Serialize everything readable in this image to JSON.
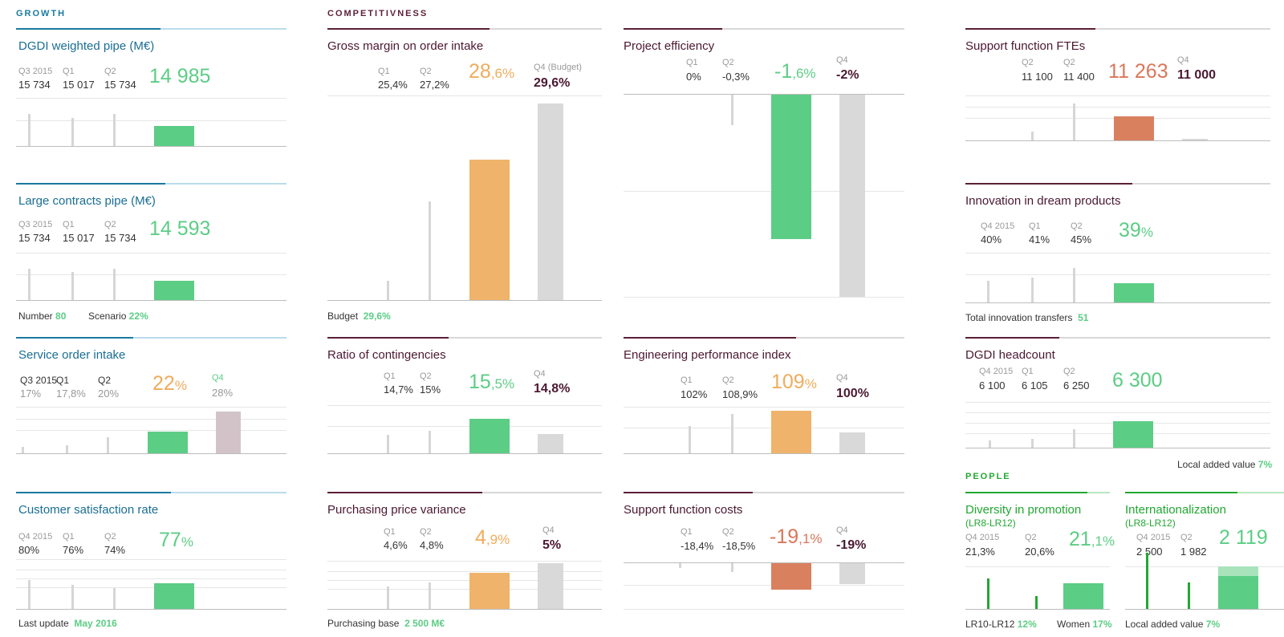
{
  "sections": {
    "growth": "GROWTH",
    "competitiveness": "COMPETITIVNESS",
    "people": "PEOPLE"
  },
  "colors": {
    "blue": "#1a7aa0",
    "dark": "#5b1f37",
    "green_text": "#22a832",
    "bar_green": "#5ccd85",
    "bar_orange": "#efb36b",
    "bar_red": "#d9805f",
    "bar_grey": "#d9d9d9"
  },
  "dgdi_pipe": {
    "title": "DGDI weighted pipe (M€)",
    "q": [
      {
        "l": "Q3 2015",
        "v": "15 734"
      },
      {
        "l": "Q1",
        "v": "15 017"
      },
      {
        "l": "Q2",
        "v": "15 734"
      }
    ],
    "current": "14 985"
  },
  "large_contracts": {
    "title": "Large contracts pipe (M€)",
    "q": [
      {
        "l": "Q3 2015",
        "v": "15 734"
      },
      {
        "l": "Q1",
        "v": "15 017"
      },
      {
        "l": "Q2",
        "v": "15 734"
      }
    ],
    "current": "14 593",
    "foot1_label": "Number",
    "foot1_value": "80",
    "foot2_label": "Scenario",
    "foot2_value": "22%"
  },
  "service_order": {
    "title": "Service order intake",
    "q": [
      {
        "l": "Q3 2015",
        "v": "17%"
      },
      {
        "l": "Q1",
        "v": "17,8%"
      },
      {
        "l": "Q2",
        "v": "20%"
      }
    ],
    "current_int": "22",
    "current_unit": "%",
    "target_label": "Q4",
    "target_value": "28%"
  },
  "customer_sat": {
    "title": "Customer satisfaction rate",
    "q": [
      {
        "l": "Q4 2015",
        "v": "80%"
      },
      {
        "l": "Q1",
        "v": "76%"
      },
      {
        "l": "Q2",
        "v": "74%"
      }
    ],
    "current_int": "77",
    "current_unit": "%",
    "foot_label": "Last update",
    "foot_value": "May 2016"
  },
  "gross_margin": {
    "title": "Gross margin on order intake",
    "q": [
      {
        "l": "Q1",
        "v": "25,4%"
      },
      {
        "l": "Q2",
        "v": "27,2%"
      }
    ],
    "current_int": "28",
    "current_dec": ",6%",
    "target_label": "Q4 (Budget)",
    "target_value": "29,6%",
    "foot_label": "Budget",
    "foot_value": "29,6%"
  },
  "contingencies": {
    "title": "Ratio of contingencies",
    "q": [
      {
        "l": "Q1",
        "v": "14,7%"
      },
      {
        "l": "Q2",
        "v": "15%"
      }
    ],
    "current_int": "15",
    "current_dec": ",5%",
    "target_label": "Q4",
    "target_value": "14,8%"
  },
  "purchasing": {
    "title": "Purchasing price variance",
    "q": [
      {
        "l": "Q1",
        "v": "4,6%"
      },
      {
        "l": "Q2",
        "v": "4,8%"
      }
    ],
    "current_int": "4",
    "current_dec": ",9%",
    "target_label": "Q4",
    "target_value": "5%",
    "foot_label": "Purchasing base",
    "foot_value": "2 500 M€"
  },
  "project_eff": {
    "title": "Project efficiency",
    "q": [
      {
        "l": "Q1",
        "v": "0%"
      },
      {
        "l": "Q2",
        "v": "-0,3%"
      }
    ],
    "current_int": "-1",
    "current_dec": ",6%",
    "target_label": "Q4",
    "target_value": "-2%"
  },
  "eng_perf": {
    "title": "Engineering performance index",
    "q": [
      {
        "l": "Q1",
        "v": "102%"
      },
      {
        "l": "Q2",
        "v": "108,9%"
      }
    ],
    "current_int": "109",
    "current_unit": "%",
    "target_label": "Q4",
    "target_value": "100%"
  },
  "support_costs": {
    "title": "Support function costs",
    "q": [
      {
        "l": "Q1",
        "v": "-18,4%"
      },
      {
        "l": "Q2",
        "v": "-18,5%"
      }
    ],
    "current_int": "-19",
    "current_dec": ",1%",
    "target_label": "Q4",
    "target_value": "-19%"
  },
  "support_fte": {
    "title": "Support function FTEs",
    "q": [
      {
        "l": "Q2",
        "v": "11 100"
      },
      {
        "l": "Q2",
        "v": "11 400"
      }
    ],
    "current": "11 263",
    "target_label": "Q4",
    "target_value": "11 000"
  },
  "innovation": {
    "title": "Innovation in dream products",
    "q": [
      {
        "l": "Q4 2015",
        "v": "40%"
      },
      {
        "l": "Q1",
        "v": "41%"
      },
      {
        "l": "Q2",
        "v": "45%"
      }
    ],
    "current_int": "39",
    "current_unit": "%",
    "foot_label": "Total innovation transfers",
    "foot_value": "51"
  },
  "headcount": {
    "title": "DGDI headcount",
    "q": [
      {
        "l": "Q4 2015",
        "v": "6 100"
      },
      {
        "l": "Q1",
        "v": "6 105"
      },
      {
        "l": "Q2",
        "v": "6 250"
      }
    ],
    "current": "6 300",
    "foot_label": "Local added value",
    "foot_value": "7%"
  },
  "diversity": {
    "title": "Diversity in promotion",
    "sub": "(LR8-LR12)",
    "q": [
      {
        "l": "Q4 2015",
        "v": "21,3%"
      },
      {
        "l": "Q2",
        "v": "20,6%"
      }
    ],
    "current_int": "21",
    "current_dec": ",1%",
    "foot1_label": "LR10-LR12",
    "foot1_value": "12%",
    "foot2_label": "Women",
    "foot2_value": "17%"
  },
  "internat": {
    "title": "Internationalization",
    "sub": "(LR8-LR12)",
    "q": [
      {
        "l": "Q4 2015",
        "v": "2 500"
      },
      {
        "l": "Q2",
        "v": "1 982"
      }
    ],
    "current": "2 119",
    "foot_label": "Local added value",
    "foot_value": "7%"
  }
}
